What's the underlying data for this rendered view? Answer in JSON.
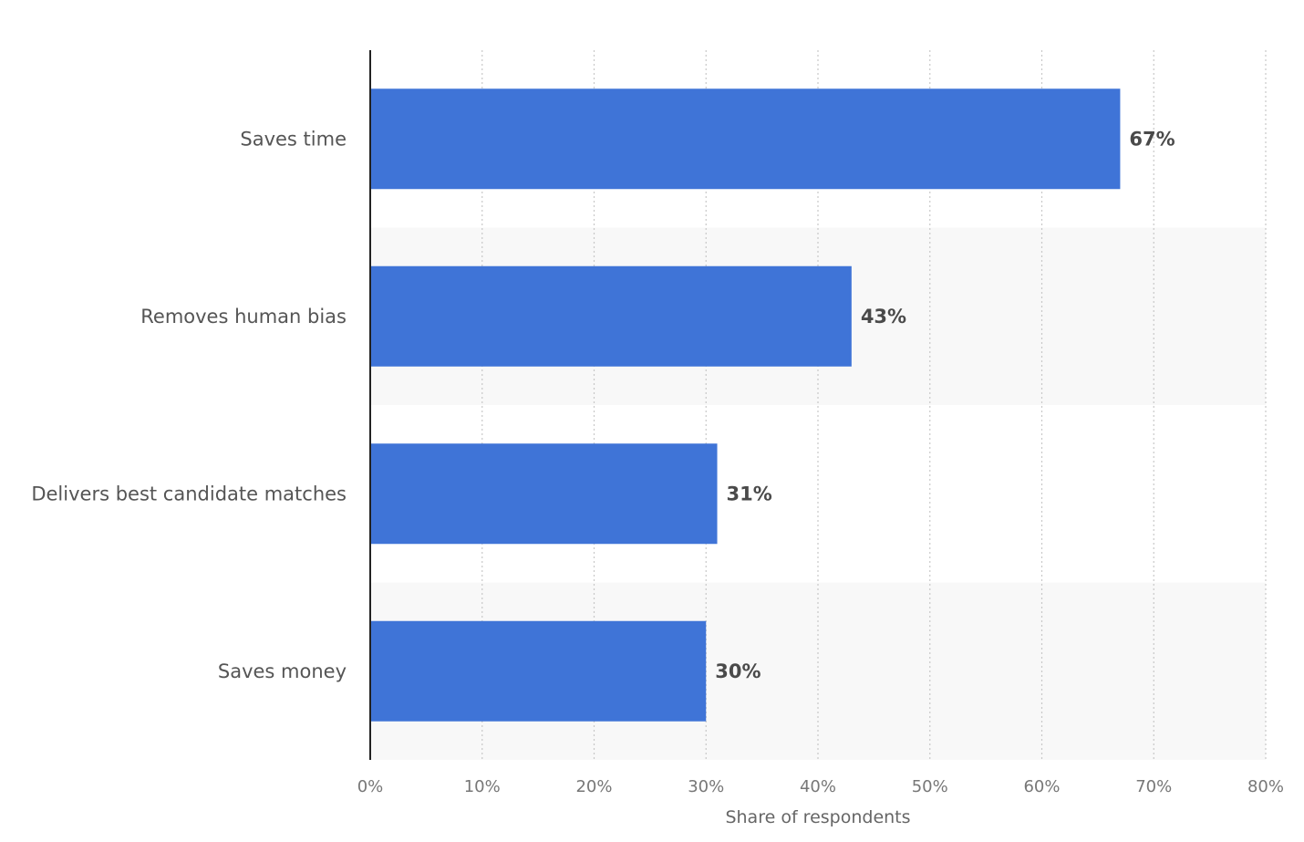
{
  "colors": {
    "bar": "#3f74d7",
    "band": "#f8f8f8",
    "gridline": "#c8c8c8"
  },
  "chart_data": {
    "type": "bar",
    "orientation": "horizontal",
    "categories": [
      "Saves time",
      "Removes human bias",
      "Delivers best candidate matches",
      "Saves money"
    ],
    "values": [
      67,
      43,
      31,
      30
    ],
    "data_labels": [
      "67%",
      "43%",
      "31%",
      "30%"
    ],
    "x_ticks": [
      0,
      10,
      20,
      30,
      40,
      50,
      60,
      70,
      80
    ],
    "x_tick_labels": [
      "0%",
      "10%",
      "20%",
      "30%",
      "40%",
      "50%",
      "60%",
      "70%",
      "80%"
    ],
    "xlim": [
      0,
      80
    ],
    "xlabel": "Share of respondents",
    "ylabel": "",
    "grid": true
  }
}
